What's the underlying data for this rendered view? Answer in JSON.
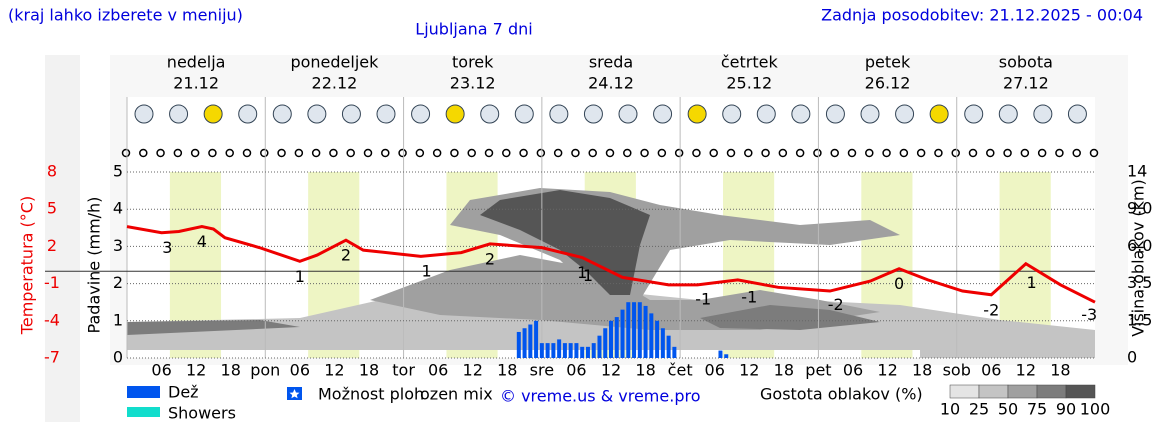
{
  "header": {
    "hint": "(kraj lahko izberete v meniju)",
    "updated": "Zadnja posodobitev: 21.12.2025 - 00:04"
  },
  "chart_data": {
    "type": "meteogram",
    "title": "Ljubljana 7 dni",
    "days": [
      {
        "name": "nedelja",
        "date": "21.12",
        "color": "#ee0000"
      },
      {
        "name": "ponedeljek",
        "date": "22.12",
        "color": "#000000"
      },
      {
        "name": "torek",
        "date": "23.12",
        "color": "#000000"
      },
      {
        "name": "sreda",
        "date": "24.12",
        "color": "#000000"
      },
      {
        "name": "četrtek",
        "date": "25.12",
        "color": "#000000"
      },
      {
        "name": "petek",
        "date": "26.12",
        "color": "#000000"
      },
      {
        "name": "sobota",
        "date": "27.12",
        "color": "#ee0000"
      }
    ],
    "xlim": [
      0,
      168
    ],
    "xticks": [
      {
        "value": 6,
        "label": "06"
      },
      {
        "value": 12,
        "label": "12"
      },
      {
        "value": 18,
        "label": "18"
      },
      {
        "value": 24,
        "label": "pon"
      },
      {
        "value": 30,
        "label": "06"
      },
      {
        "value": 36,
        "label": "12"
      },
      {
        "value": 42,
        "label": "18"
      },
      {
        "value": 48,
        "label": "tor"
      },
      {
        "value": 54,
        "label": "06"
      },
      {
        "value": 60,
        "label": "12"
      },
      {
        "value": 66,
        "label": "18"
      },
      {
        "value": 72,
        "label": "sre"
      },
      {
        "value": 78,
        "label": "06"
      },
      {
        "value": 84,
        "label": "12"
      },
      {
        "value": 90,
        "label": "18"
      },
      {
        "value": 96,
        "label": "čet"
      },
      {
        "value": 102,
        "label": "06"
      },
      {
        "value": 108,
        "label": "12"
      },
      {
        "value": 114,
        "label": "18"
      },
      {
        "value": 120,
        "label": "pet"
      },
      {
        "value": 126,
        "label": "06"
      },
      {
        "value": 132,
        "label": "12"
      },
      {
        "value": 138,
        "label": "18"
      },
      {
        "value": 144,
        "label": "sob"
      },
      {
        "value": 150,
        "label": "06"
      },
      {
        "value": 156,
        "label": "12"
      },
      {
        "value": 162,
        "label": "18"
      }
    ],
    "temperature": {
      "axis_label": "Temperatura (°C)",
      "color": "#ee0000",
      "ylim": [
        -7,
        8
      ],
      "yticks": [
        -7,
        -4,
        -1,
        2,
        5,
        8
      ],
      "x": [
        0,
        6,
        9,
        13,
        15,
        17,
        23,
        30,
        33,
        38,
        41,
        51,
        58,
        63,
        72,
        79,
        86,
        94,
        99,
        106,
        113,
        122,
        129,
        134,
        139,
        145,
        150,
        156,
        162,
        168
      ],
      "values": [
        3.6,
        3.1,
        3.2,
        3.6,
        3.4,
        2.7,
        1.9,
        0.8,
        1.3,
        2.5,
        1.7,
        1.2,
        1.5,
        2.2,
        1.9,
        1.1,
        -0.5,
        -1.1,
        -1.1,
        -0.7,
        -1.3,
        -1.6,
        -0.8,
        0.2,
        -0.7,
        -1.6,
        -1.9,
        0.6,
        -1.1,
        -2.5
      ],
      "labels": {
        "x": [
          7,
          13,
          30,
          38,
          52,
          63,
          79,
          80,
          100,
          108,
          123,
          134,
          150,
          157,
          167
        ],
        "values": [
          3,
          4,
          1,
          2,
          1,
          2,
          1,
          1,
          -1,
          -1,
          -2,
          0,
          -2,
          1,
          -3
        ]
      }
    },
    "precipitation": {
      "axis_label": "Padavine (mm/h)",
      "color": "#0055ee",
      "ylim": [
        0,
        5
      ],
      "yticks": [
        0,
        1,
        2,
        3,
        4,
        5
      ],
      "x": [
        68,
        69,
        70,
        71,
        72,
        73,
        74,
        75,
        76,
        77,
        78,
        79,
        80,
        81,
        82,
        83,
        84,
        85,
        86,
        87,
        88,
        89,
        90,
        91,
        92,
        93,
        94,
        95,
        103,
        104
      ],
      "values": [
        0.7,
        0.8,
        0.9,
        1.0,
        0.4,
        0.4,
        0.4,
        0.5,
        0.4,
        0.4,
        0.4,
        0.3,
        0.3,
        0.4,
        0.6,
        0.8,
        1.0,
        1.1,
        1.3,
        1.5,
        1.5,
        1.5,
        1.4,
        1.2,
        1.0,
        0.8,
        0.6,
        0.3,
        0.2,
        0.1
      ]
    },
    "cloud_height": {
      "axis_label": "Višina oblakov (km)",
      "yticks": [
        0,
        {
          "value": 1.5,
          "label": "1.5"
        },
        {
          "value": 3.5,
          "label": "3.5"
        },
        {
          "value": 6,
          "label": "6.0"
        },
        {
          "value": 9,
          "label": "9.0"
        },
        14
      ]
    },
    "legend": [
      {
        "name": "Dež",
        "color": "#0055ee"
      },
      {
        "name": "Showers",
        "color": "#11ddcc"
      },
      {
        "name": "Možnost ploh",
        "color": "#0055ee"
      },
      {
        "name": "ozen mix"
      }
    ],
    "credit": "© vreme.us & vreme.pro",
    "cloud_scale": {
      "title": "Gostota oblakov (%)",
      "ticks": [
        10,
        25,
        50,
        75,
        90,
        100
      ],
      "colors": [
        "#e4e4e4",
        "#c4c4c4",
        "#a0a0a0",
        "#7c7c7c",
        "#555555"
      ]
    }
  }
}
